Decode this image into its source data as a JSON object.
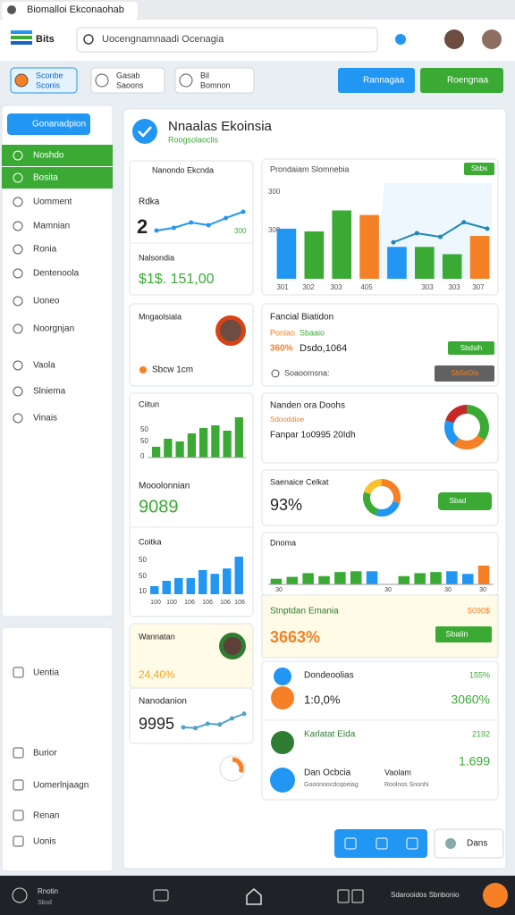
{
  "browser": {
    "tab_title": "Biomalloi Ekconaohab"
  },
  "app_bar": {
    "brand": "Bits",
    "search_placeholder": "Uocengnamnaadi Ocenagia"
  },
  "toolbar": {
    "chips": [
      {
        "line1": "Sconbe",
        "line2": "Sconis"
      },
      {
        "line1": "Gasab",
        "line2": "Saoons"
      },
      {
        "line1": "Bil",
        "line2": "Bomnon"
      }
    ],
    "buttons": [
      "Rannagaa",
      "Roengnaa"
    ]
  },
  "sidebar": {
    "primary": "Gonanadpion",
    "active": [
      "Noshdo",
      "Bosita"
    ],
    "items": [
      "Uomment",
      "Mamnian",
      "Ronia",
      "Dentenoola",
      "Uoneo",
      "Noorgnjan",
      "Vaola",
      "Slniema",
      "Vinais"
    ],
    "lower_items": [
      "Uentia",
      "Burior",
      "Uomerlnjaagn",
      "Renan",
      "Uonis"
    ]
  },
  "main": {
    "title": "Nnaalas Ekoinsia",
    "subtitle": "Roogsolaoclis"
  },
  "summary_card": {
    "header": "Nanondo Ekcnda",
    "label": "Rdka",
    "value": "2",
    "small": "300",
    "sparkline": [
      20,
      26,
      38,
      32,
      48,
      62
    ],
    "ylim": [
      0,
      100
    ],
    "sub_label": "Nalsondia",
    "amount": "$1$. 151,00"
  },
  "chart_card": {
    "title": "Prondaiam Slomnebia",
    "badge": "Sbbs",
    "y_labels": [
      "300",
      "300"
    ],
    "x_labels": [
      "301",
      "302",
      "303",
      "405",
      "303",
      "303",
      "307"
    ],
    "values": [
      55,
      52,
      75,
      70,
      35,
      35,
      27,
      47
    ],
    "colors": [
      "#2196f3",
      "#3aaa35",
      "#3aaa35",
      "#f58025",
      "#2196f3",
      "#3aaa35",
      "#3aaa35",
      "#f58025"
    ],
    "trend": [
      40,
      50,
      46,
      62,
      55
    ],
    "ylim": [
      0,
      100
    ]
  },
  "profile_card": {
    "title": "Mngaolsiala",
    "note": "Sbcw 1cm"
  },
  "finance_card": {
    "title": "Fancial Biatidon",
    "line1": "Ponlao",
    "line1_value": "Sbaaio",
    "line2_pct": "360%",
    "line2": "Dsdo,1064",
    "button": "Sbdsih",
    "footer": "Soaoomsna:",
    "tag": "Sb5sOia"
  },
  "green_bars_card": {
    "title": "Ciitun",
    "y_labels": [
      "50",
      "50",
      "0"
    ],
    "values": [
      20,
      35,
      30,
      45,
      55,
      60,
      50,
      75
    ],
    "ylim": [
      0,
      100
    ],
    "color": "#3aaa35",
    "label": "Mooolonnian",
    "value": "9089"
  },
  "donut_card": {
    "title": "Nanden ora Doohs",
    "sub": "Sdooddioe",
    "line": "Fanpar 1o0995 20Idh",
    "values": [
      35,
      25,
      20,
      20
    ],
    "colors": [
      "#3aaa35",
      "#f58025",
      "#2196f3",
      "#c62828"
    ]
  },
  "score_card": {
    "title": "Saenaice Celkat",
    "value": "93%",
    "values": [
      30,
      25,
      25,
      20
    ],
    "colors": [
      "#f58025",
      "#2196f3",
      "#3aaa35",
      "#fbc02d"
    ],
    "button": "Sbad"
  },
  "blue_bars_card": {
    "title": "Coitka",
    "y_labels": [
      "50",
      "50",
      "10"
    ],
    "values": [
      15,
      25,
      30,
      30,
      45,
      38,
      48,
      70
    ],
    "ylim": [
      0,
      100
    ],
    "color": "#2196f3",
    "x_labels": [
      "100",
      "100",
      "106",
      "106",
      "106",
      "106"
    ]
  },
  "mixed_bars_card": {
    "title": "Dnoma",
    "values": [
      15,
      20,
      30,
      22,
      33,
      35,
      35,
      0,
      22,
      30,
      33,
      35,
      28,
      50
    ],
    "colors": [
      "#3aaa35",
      "#3aaa35",
      "#3aaa35",
      "#3aaa35",
      "#3aaa35",
      "#3aaa35",
      "#2196f3",
      "#3aaa35",
      "#3aaa35",
      "#3aaa35",
      "#3aaa35",
      "#2196f3",
      "#2196f3",
      "#f58025"
    ],
    "ylim": [
      0,
      100
    ],
    "x_labels": [
      "30",
      "30",
      "30",
      "30"
    ]
  },
  "wallet_card": {
    "title": "Wannatan",
    "value": "24,40%"
  },
  "promo_card": {
    "title": "Stnptdan Emania",
    "amount": "5090$",
    "value": "3663%",
    "button": "Sbaiin"
  },
  "trend_card": {
    "title": "Nanodanion",
    "value": "9995",
    "sparkline": [
      20,
      18,
      30,
      28,
      45,
      58
    ],
    "ylim": [
      0,
      100
    ]
  },
  "list": [
    {
      "title": "Dondeoolias",
      "tag": "155%",
      "sub": "1:0,0%",
      "value": "3060%"
    },
    {
      "title": "Karlatat Eida",
      "tag": "2192",
      "value": "1.699"
    },
    {
      "title": "Dan Ocbcia",
      "sub": "Gooonoocdcqoeiag",
      "col": "Vaolam",
      "col_sub": "Roolnos Snonhi"
    }
  ],
  "actions": {
    "secondary": "Dans"
  },
  "bottom_bar": {
    "left1": "Rnotin",
    "left2": "Sbsd",
    "status": "Sdarooidos Sbnbonio"
  }
}
